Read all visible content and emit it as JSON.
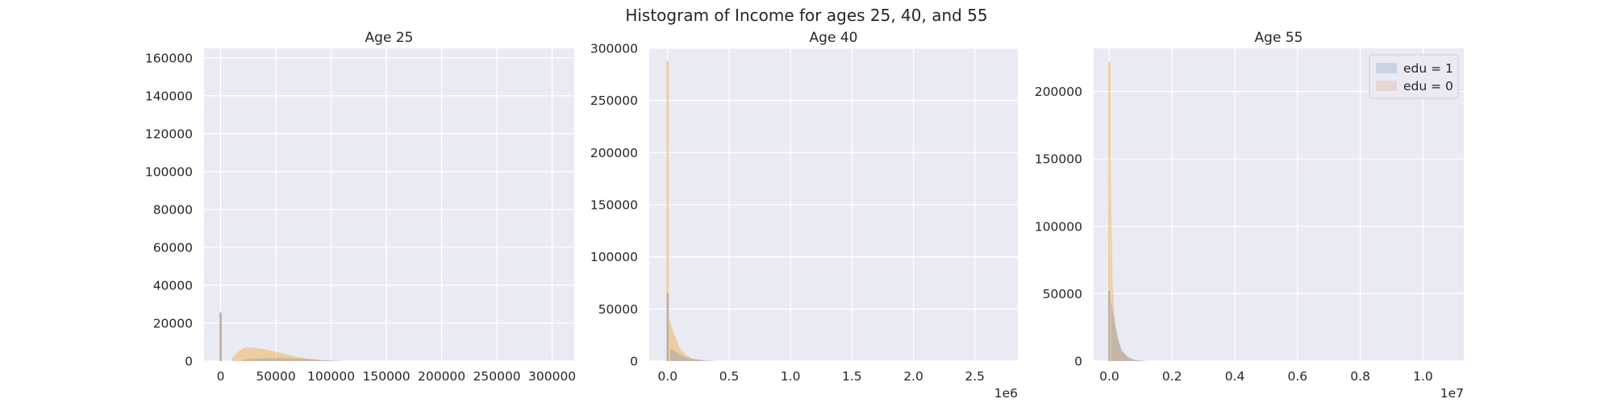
{
  "figure_title": "Histogram of Income for ages 25, 40, and 55",
  "colors": {
    "panel_bg": "#EAEAF2",
    "grid": "#FFFFFF",
    "edu1": "#4C72B0",
    "edu0": "#F2A93B",
    "edu0_legend": "#DD8452"
  },
  "legend": {
    "placement": "top-right of Age 55 panel",
    "entries": [
      {
        "label": "edu = 1",
        "color": "#4C72B0"
      },
      {
        "label": "edu = 0",
        "color": "#DD8452"
      }
    ]
  },
  "chart_data": [
    {
      "type": "histogram",
      "title": "Age 25",
      "xlabel": "",
      "ylabel": "",
      "xlim": [
        -15000,
        320000
      ],
      "ylim": [
        0,
        165000
      ],
      "grid": true,
      "x_offset_label": "",
      "xticks": [
        0,
        50000,
        100000,
        150000,
        200000,
        250000,
        300000
      ],
      "xtick_labels": [
        "0",
        "50000",
        "100000",
        "150000",
        "200000",
        "250000",
        "300000"
      ],
      "yticks": [
        0,
        20000,
        40000,
        60000,
        80000,
        100000,
        120000,
        140000,
        160000
      ],
      "ytick_labels": [
        "0",
        "20000",
        "40000",
        "60000",
        "80000",
        "100000",
        "120000",
        "140000",
        "160000"
      ],
      "series": [
        {
          "edu": 0,
          "x": [
            0,
            10000,
            15000,
            20000,
            25000,
            30000,
            35000,
            40000,
            45000,
            50000,
            55000,
            60000,
            70000,
            80000,
            90000,
            100000,
            110000
          ],
          "y": [
            25000,
            1500,
            4500,
            6800,
            7200,
            7000,
            6600,
            6200,
            5600,
            5000,
            4200,
            3500,
            2200,
            1200,
            600,
            250,
            0
          ]
        },
        {
          "edu": 1,
          "x": [
            0,
            20000,
            30000,
            40000,
            50000,
            60000,
            70000,
            80000,
            90000,
            100000,
            110000
          ],
          "y": [
            26000,
            800,
            1200,
            1500,
            1600,
            1500,
            1300,
            1000,
            600,
            300,
            0
          ]
        }
      ]
    },
    {
      "type": "histogram",
      "title": "Age 40",
      "xlabel": "",
      "ylabel": "",
      "xlim": [
        -150000,
        2850000
      ],
      "ylim": [
        0,
        300000
      ],
      "grid": true,
      "x_offset_label": "1e6",
      "xticks": [
        0,
        500000,
        1000000,
        1500000,
        2000000,
        2500000
      ],
      "xtick_labels": [
        "0.0",
        "0.5",
        "1.0",
        "1.5",
        "2.0",
        "2.5"
      ],
      "yticks": [
        0,
        50000,
        100000,
        150000,
        200000,
        250000,
        300000
      ],
      "ytick_labels": [
        "0",
        "50000",
        "100000",
        "150000",
        "200000",
        "250000",
        "300000"
      ],
      "series": [
        {
          "edu": 0,
          "x": [
            0,
            10000,
            20000,
            40000,
            60000,
            80000,
            100000,
            150000,
            200000,
            300000,
            400000
          ],
          "y": [
            288000,
            40000,
            38000,
            30000,
            24000,
            18000,
            12000,
            6000,
            2500,
            700,
            0
          ]
        },
        {
          "edu": 1,
          "x": [
            0,
            20000,
            50000,
            100000,
            150000,
            200000,
            300000,
            400000
          ],
          "y": [
            65000,
            12000,
            10000,
            6000,
            3500,
            2000,
            600,
            0
          ]
        }
      ]
    },
    {
      "type": "histogram",
      "title": "Age 55",
      "xlabel": "",
      "ylabel": "",
      "xlim": [
        -500000,
        11300000
      ],
      "ylim": [
        0,
        232000
      ],
      "grid": true,
      "x_offset_label": "1e7",
      "xticks": [
        0,
        2000000,
        4000000,
        6000000,
        8000000,
        10000000
      ],
      "xtick_labels": [
        "0.0",
        "0.2",
        "0.4",
        "0.6",
        "0.8",
        "1.0"
      ],
      "yticks": [
        0,
        50000,
        100000,
        150000,
        200000
      ],
      "ytick_labels": [
        "0",
        "50000",
        "100000",
        "150000",
        "200000"
      ],
      "series": [
        {
          "edu": 0,
          "x": [
            0,
            50000,
            100000,
            150000,
            200000,
            300000,
            400000,
            600000,
            800000,
            1200000
          ],
          "y": [
            222000,
            150000,
            60000,
            38000,
            25000,
            14000,
            7000,
            2500,
            800,
            0
          ]
        },
        {
          "edu": 1,
          "x": [
            0,
            50000,
            100000,
            200000,
            300000,
            400000,
            600000,
            800000,
            1200000
          ],
          "y": [
            52000,
            45000,
            38000,
            26000,
            15000,
            8000,
            3000,
            1000,
            0
          ]
        }
      ]
    }
  ]
}
